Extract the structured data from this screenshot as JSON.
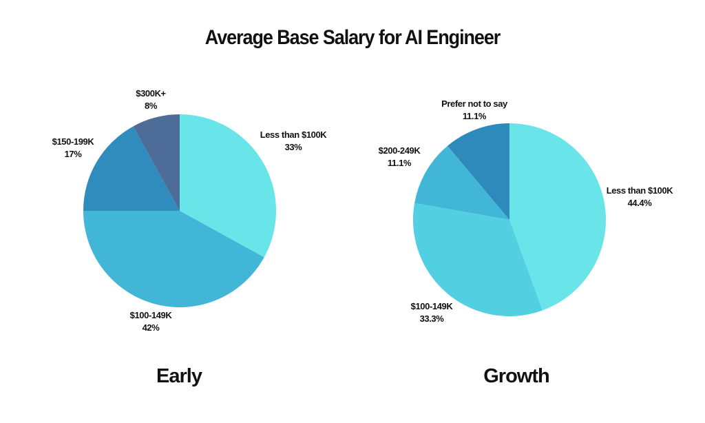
{
  "title": "Average Base Salary for AI Engineer",
  "chart_data": [
    {
      "type": "pie",
      "subtitle": "Early",
      "slices": [
        {
          "label": "Less than $100K",
          "value": 33,
          "value_label": "33%",
          "color": "#69E4E8"
        },
        {
          "label": "$100-149K",
          "value": 42,
          "value_label": "42%",
          "color": "#42B6D6"
        },
        {
          "label": "$150-199K",
          "value": 17,
          "value_label": "17%",
          "color": "#2F8CBC"
        },
        {
          "label": "$300K+",
          "value": 8,
          "value_label": "8%",
          "color": "#4E6C98"
        }
      ]
    },
    {
      "type": "pie",
      "subtitle": "Growth",
      "slices": [
        {
          "label": "Less than $100K",
          "value": 44.4,
          "value_label": "44.4%",
          "color": "#69E4E8"
        },
        {
          "label": "$100-149K",
          "value": 33.3,
          "value_label": "33.3%",
          "color": "#52CFE0"
        },
        {
          "label": "$200-249K",
          "value": 11.1,
          "value_label": "11.1%",
          "color": "#42B6D6"
        },
        {
          "label": "Prefer not to say",
          "value": 11.1,
          "value_label": "11.1%",
          "color": "#2D8ABA"
        }
      ]
    }
  ]
}
